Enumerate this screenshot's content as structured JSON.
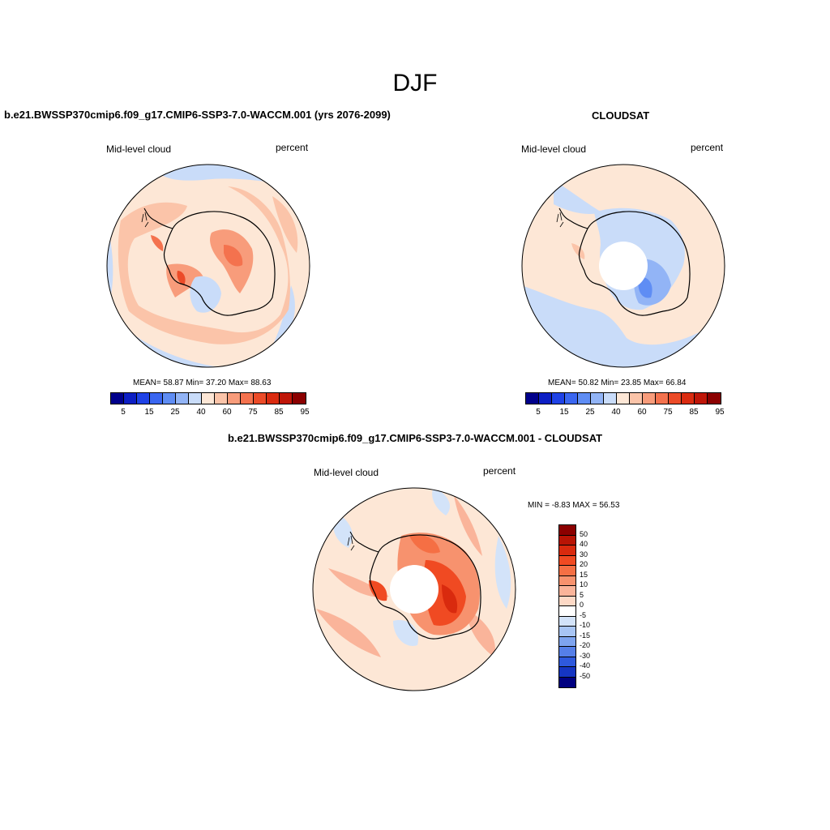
{
  "figure": {
    "title": "DJF"
  },
  "panels": {
    "model": {
      "title": "b.e21.BWSSP370cmip6.f09_g17.CMIP6-SSP3-7.0-WACCM.001 (yrs 2076-2099)",
      "left_label": "Mid-level cloud",
      "right_label": "percent",
      "stats": "MEAN=  58.87  Min=  37.20  Max=  88.63"
    },
    "obs": {
      "title": "CLOUDSAT",
      "left_label": "Mid-level cloud",
      "right_label": "percent",
      "stats": "MEAN=  50.82  Min=  23.85  Max=  66.84"
    },
    "diff": {
      "title": "b.e21.BWSSP370cmip6.f09_g17.CMIP6-SSP3-7.0-WACCM.001 - CLOUDSAT",
      "left_label": "Mid-level cloud",
      "right_label": "percent",
      "stats": "MIN =  -8.83 MAX =  56.53"
    }
  },
  "colorbars": {
    "field": {
      "colors": [
        "#00008b",
        "#0d1fc4",
        "#1f42e6",
        "#3a66f0",
        "#5f8df4",
        "#92b4f6",
        "#c9dcf9",
        "#fde7d6",
        "#fbc4a9",
        "#f89c7b",
        "#f4724e",
        "#ec4b28",
        "#da2b10",
        "#bf1608",
        "#8b0000"
      ],
      "tick_labels": [
        "5",
        "15",
        "25",
        "40",
        "60",
        "75",
        "85",
        "95"
      ]
    },
    "diff": {
      "colors": [
        "#8b0000",
        "#b81405",
        "#d92a0e",
        "#f04a22",
        "#f56f44",
        "#f7926e",
        "#fab49a",
        "#fdd9c6",
        "#ffffff",
        "#d3e3f9",
        "#a8c5f4",
        "#7ea4ef",
        "#557fe8",
        "#2e59dd",
        "#1535c2",
        "#000080"
      ],
      "tick_labels": [
        "50",
        "40",
        "30",
        "20",
        "15",
        "10",
        "5",
        "0",
        "-5",
        "-10",
        "-15",
        "-20",
        "-30",
        "-40",
        "-50"
      ]
    }
  }
}
